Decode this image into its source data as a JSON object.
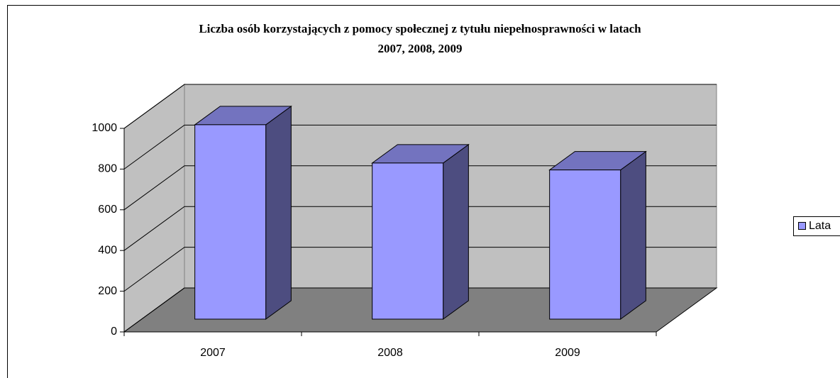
{
  "chart_data": {
    "type": "bar3d",
    "title": [
      "Liczba osób korzystających z pomocy społecznej z tytułu niepełnosprawności w latach",
      "2007, 2008, 2009"
    ],
    "categories": [
      "2007",
      "2008",
      "2009"
    ],
    "series": [
      {
        "name": "Lata",
        "color": "#9999ff",
        "values": [
          955,
          767,
          733
        ]
      }
    ],
    "ylim": [
      0,
      1000
    ],
    "yticks": [
      0,
      200,
      400,
      600,
      800,
      1000
    ],
    "grid": true,
    "legend": "right"
  }
}
